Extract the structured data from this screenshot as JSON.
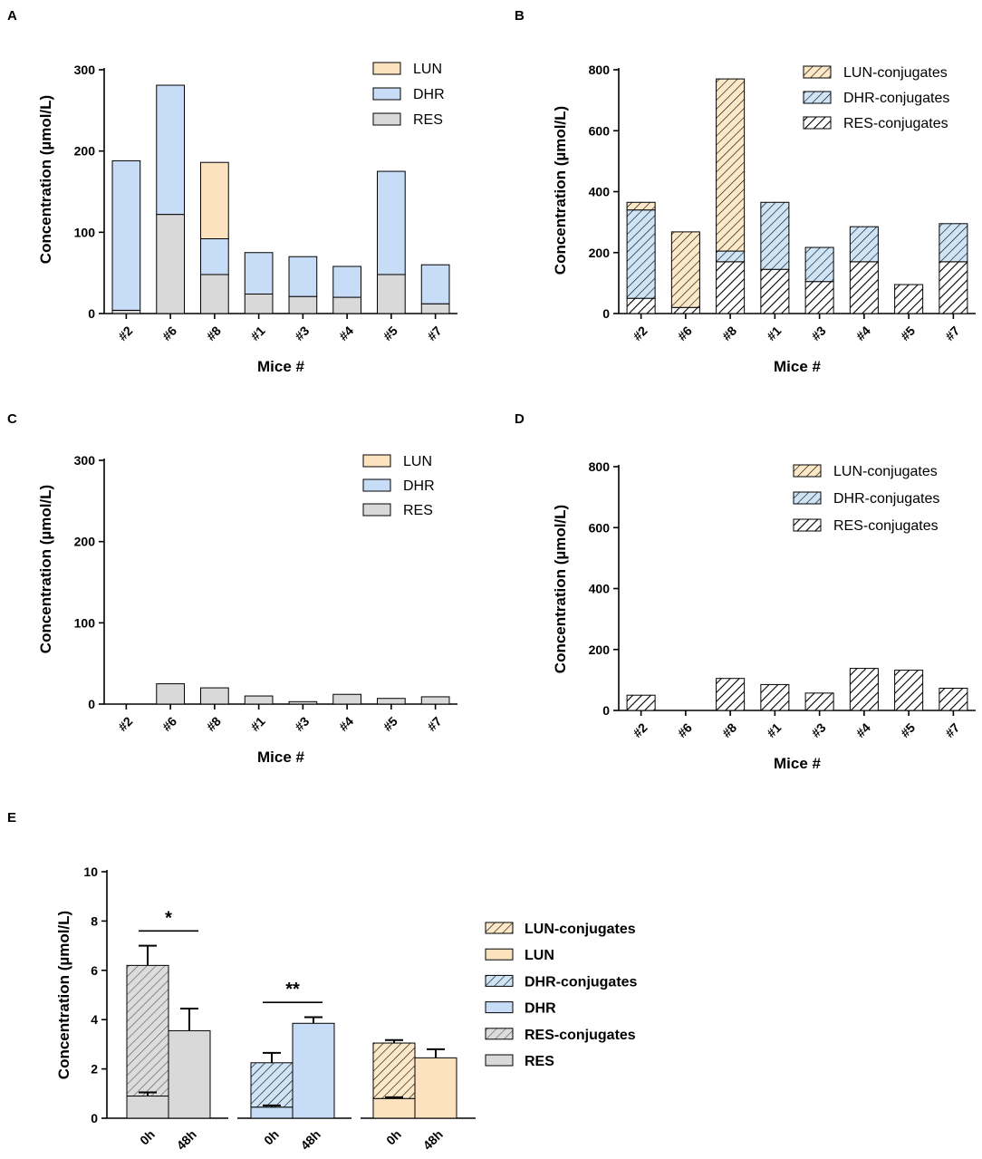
{
  "panels": {
    "A": {
      "letter": "A",
      "chart_data": {
        "type": "bar",
        "stacked": true,
        "categories": [
          "#2",
          "#6",
          "#8",
          "#1",
          "#3",
          "#4",
          "#5",
          "#7"
        ],
        "series": [
          {
            "name": "RES",
            "values": [
              4,
              122,
              48,
              24,
              21,
              20,
              48,
              12
            ]
          },
          {
            "name": "DHR",
            "values": [
              184,
              159,
              44,
              51,
              49,
              38,
              127,
              48
            ]
          },
          {
            "name": "LUN",
            "values": [
              0,
              0,
              94,
              0,
              0,
              0,
              0,
              0
            ]
          }
        ],
        "legend": [
          "LUN",
          "DHR",
          "RES"
        ],
        "xlabel": "Mice #",
        "ylabel": "Concentration (µmol/L)",
        "ylim": [
          0,
          300
        ],
        "yticks": [
          "0",
          "100",
          "200",
          "300"
        ]
      }
    },
    "B": {
      "letter": "B",
      "chart_data": {
        "type": "bar",
        "stacked": true,
        "hatched": true,
        "categories": [
          "#2",
          "#6",
          "#8",
          "#1",
          "#3",
          "#4",
          "#5",
          "#7"
        ],
        "series": [
          {
            "name": "RES-conjugates",
            "values": [
              50,
              20,
              170,
              145,
              105,
              170,
              95,
              170
            ]
          },
          {
            "name": "DHR-conjugates",
            "values": [
              290,
              0,
              35,
              220,
              112,
              115,
              0,
              125
            ]
          },
          {
            "name": "LUN-conjugates",
            "values": [
              25,
              248,
              565,
              0,
              0,
              0,
              0,
              0
            ]
          }
        ],
        "legend": [
          "LUN-conjugates",
          "DHR-conjugates",
          "RES-conjugates"
        ],
        "xlabel": "Mice #",
        "ylabel": "Concentration (µmol/L)",
        "ylim": [
          0,
          800
        ],
        "yticks": [
          "0",
          "200",
          "400",
          "600",
          "800"
        ]
      }
    },
    "C": {
      "letter": "C",
      "chart_data": {
        "type": "bar",
        "stacked": true,
        "categories": [
          "#2",
          "#6",
          "#8",
          "#1",
          "#3",
          "#4",
          "#5",
          "#7"
        ],
        "series": [
          {
            "name": "RES",
            "values": [
              0,
              25,
              20,
              10,
              3,
              12,
              7,
              9
            ]
          },
          {
            "name": "DHR",
            "values": [
              0,
              0,
              0,
              0,
              0,
              0,
              0,
              0
            ]
          },
          {
            "name": "LUN",
            "values": [
              0,
              0,
              0,
              0,
              0,
              0,
              0,
              0
            ]
          }
        ],
        "legend": [
          "LUN",
          "DHR",
          "RES"
        ],
        "xlabel": "Mice #",
        "ylabel": "Concentration (µmol/L)",
        "ylim": [
          0,
          300
        ],
        "yticks": [
          "0",
          "100",
          "200",
          "300"
        ]
      }
    },
    "D": {
      "letter": "D",
      "chart_data": {
        "type": "bar",
        "stacked": true,
        "hatched": true,
        "categories": [
          "#2",
          "#6",
          "#8",
          "#1",
          "#3",
          "#4",
          "#5",
          "#7"
        ],
        "series": [
          {
            "name": "RES-conjugates",
            "values": [
              50,
              0,
              105,
              85,
              57,
              138,
              132,
              73
            ]
          },
          {
            "name": "DHR-conjugates",
            "values": [
              0,
              0,
              0,
              0,
              0,
              0,
              0,
              0
            ]
          },
          {
            "name": "LUN-conjugates",
            "values": [
              0,
              0,
              0,
              0,
              0,
              0,
              0,
              0
            ]
          }
        ],
        "legend": [
          "LUN-conjugates",
          "DHR-conjugates",
          "RES-conjugates"
        ],
        "xlabel": "Mice #",
        "ylabel": "Concentration (µmol/L)",
        "ylim": [
          0,
          800
        ],
        "yticks": [
          "0",
          "200",
          "400",
          "600",
          "800"
        ]
      }
    },
    "E": {
      "letter": "E",
      "chart_data": {
        "type": "bar",
        "stacked": true,
        "error_bars": true,
        "groups": [
          {
            "compound": "RES",
            "bars": [
              {
                "label": "0h",
                "parent": 0.9,
                "parent_err": 0.15,
                "conjugates": 5.3,
                "total_err": 0.8
              },
              {
                "label": "48h",
                "parent": 3.55,
                "parent_err": 0.9,
                "conjugates": 0,
                "total_err": 0
              }
            ],
            "significance": "*"
          },
          {
            "compound": "DHR",
            "bars": [
              {
                "label": "0h",
                "parent": 0.45,
                "parent_err": 0.07,
                "conjugates": 1.8,
                "total_err": 0.4
              },
              {
                "label": "48h",
                "parent": 3.85,
                "parent_err": 0.25,
                "conjugates": 0,
                "total_err": 0
              }
            ],
            "significance": "**"
          },
          {
            "compound": "LUN",
            "bars": [
              {
                "label": "0h",
                "parent": 0.8,
                "parent_err": 0.05,
                "conjugates": 2.25,
                "total_err": 0.12
              },
              {
                "label": "48h",
                "parent": 2.45,
                "parent_err": 0.35,
                "conjugates": 0,
                "total_err": 0
              }
            ],
            "significance": ""
          }
        ],
        "legend": [
          "LUN-conjugates",
          "LUN",
          "DHR-conjugates",
          "DHR",
          "RES-conjugates",
          "RES"
        ],
        "ylabel": "Concentration (µmol/L)",
        "ylim": [
          0,
          10
        ],
        "yticks": [
          "0",
          "2",
          "4",
          "6",
          "8",
          "10"
        ]
      }
    }
  },
  "colors": {
    "LUN": "#fde2bf",
    "DHR": "#c7dcf6",
    "RES": "#d9d9d9",
    "LUN_hatch_bg": "#fde8c8",
    "DHR_hatch_bg": "#cfe4f7",
    "RES_hatch_bg": "#ffffff",
    "ink": "#000000"
  }
}
